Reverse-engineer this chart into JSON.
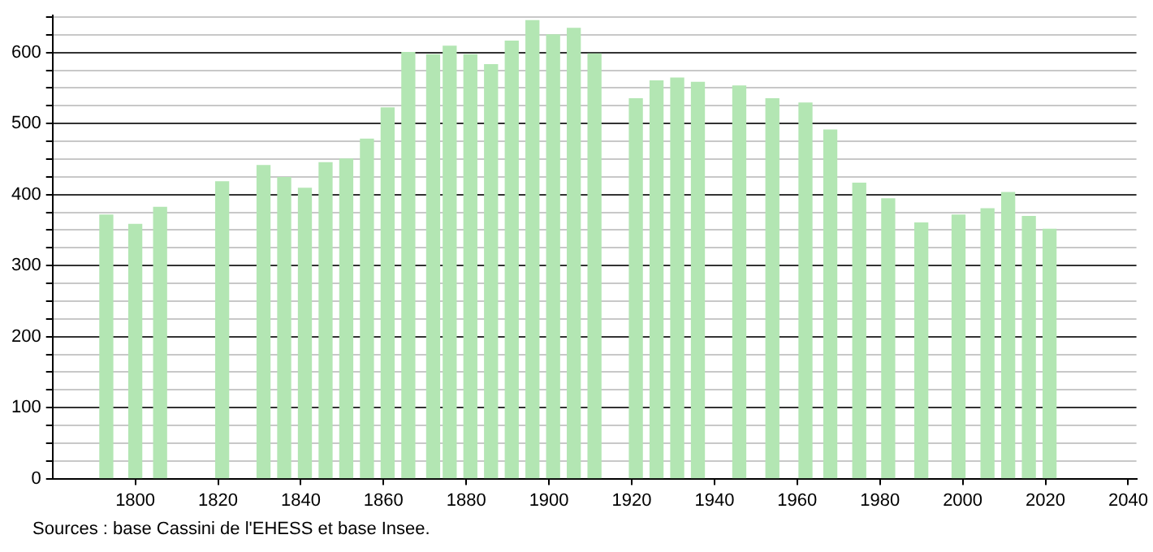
{
  "chart_data": {
    "type": "bar",
    "x": [
      1793,
      1800,
      1806,
      1821,
      1831,
      1836,
      1841,
      1846,
      1851,
      1856,
      1861,
      1866,
      1872,
      1876,
      1881,
      1886,
      1891,
      1896,
      1901,
      1906,
      1911,
      1921,
      1926,
      1931,
      1936,
      1946,
      1954,
      1962,
      1968,
      1975,
      1982,
      1990,
      1999,
      2006,
      2011,
      2016,
      2021
    ],
    "values": [
      371,
      358,
      382,
      418,
      441,
      424,
      409,
      445,
      450,
      478,
      522,
      600,
      597,
      609,
      597,
      583,
      616,
      645,
      625,
      634,
      598,
      535,
      560,
      564,
      558,
      553,
      535,
      529,
      491,
      416,
      394,
      360,
      371,
      380,
      403,
      369,
      351
    ],
    "color": "#b3e6b3",
    "xlim": [
      1780,
      2042
    ],
    "xticks": [
      1800,
      1820,
      1840,
      1860,
      1880,
      1900,
      1920,
      1940,
      1960,
      1980,
      2000,
      2020,
      2040
    ],
    "ylim": [
      0,
      652
    ],
    "yticks": [
      0,
      {
        "value": 25,
        "label": null
      },
      {
        "value": 50,
        "label": null
      },
      {
        "value": 75,
        "label": null
      },
      100,
      {
        "value": 125,
        "label": null
      },
      {
        "value": 150,
        "label": null
      },
      {
        "value": 175,
        "label": null
      },
      200,
      {
        "value": 225,
        "label": null
      },
      {
        "value": 250,
        "label": null
      },
      {
        "value": 275,
        "label": null
      },
      300,
      {
        "value": 325,
        "label": null
      },
      {
        "value": 350,
        "label": null
      },
      {
        "value": 375,
        "label": null
      },
      400,
      {
        "value": 425,
        "label": null
      },
      {
        "value": 450,
        "label": null
      },
      {
        "value": 475,
        "label": null
      },
      500,
      {
        "value": 525,
        "label": null
      },
      {
        "value": 550,
        "label": null
      },
      {
        "value": 575,
        "label": null
      },
      600,
      {
        "value": 625,
        "label": null
      },
      {
        "value": 650,
        "label": null
      }
    ],
    "grid": "y",
    "legend": false,
    "annotations": [
      "Sources : base Cassini de l'EHESS et base Insee."
    ]
  }
}
